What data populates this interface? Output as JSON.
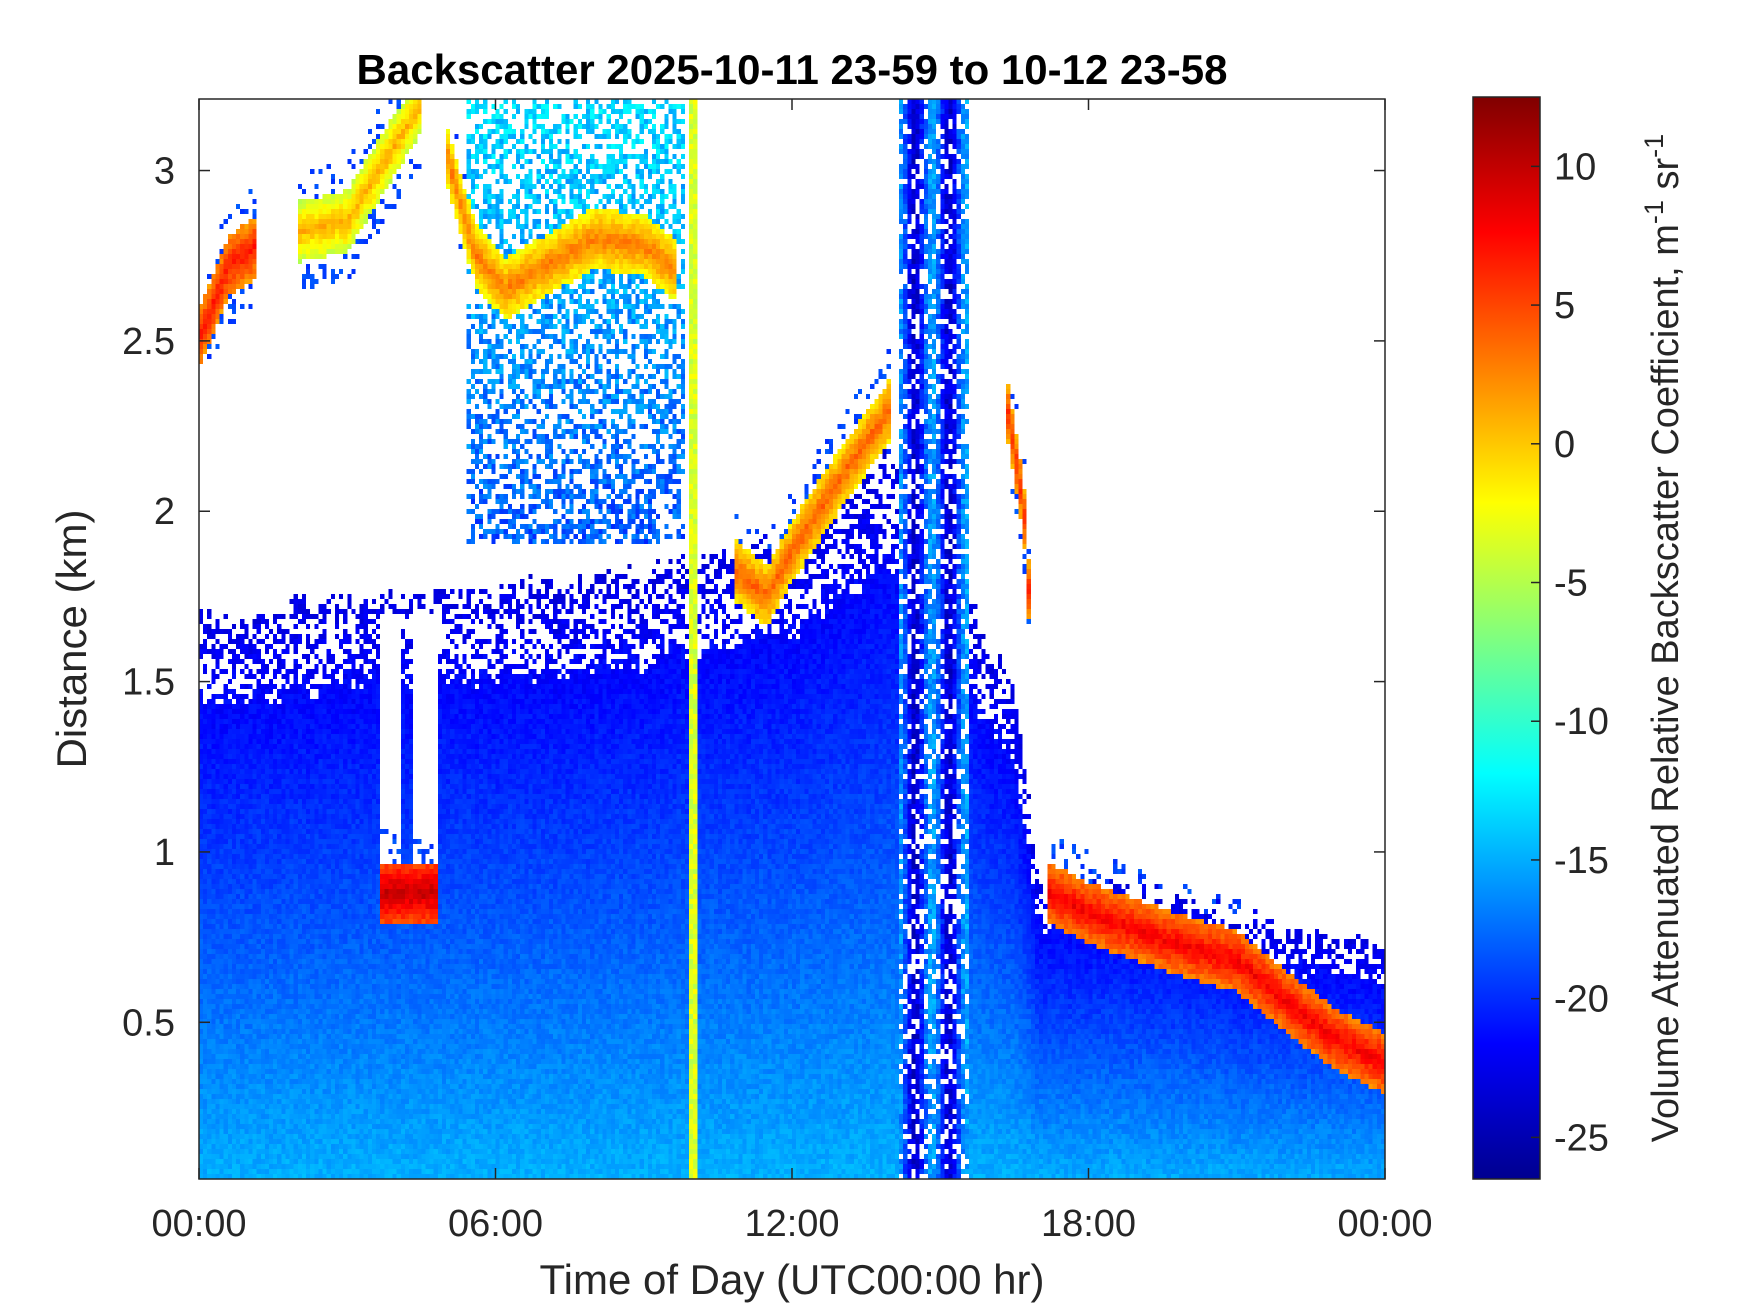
{
  "chart_data": {
    "type": "heatmap",
    "title": "Backscatter 2025-10-11 23-59 to 10-12 23-58",
    "xlabel": "Time of Day (UTC00:00 hr)",
    "ylabel": "Distance (km)",
    "xlim": [
      0,
      24
    ],
    "ylim": [
      0.04,
      3.21
    ],
    "x_ticks": [
      {
        "value": 0,
        "label": "00:00"
      },
      {
        "value": 6,
        "label": "06:00"
      },
      {
        "value": 12,
        "label": "12:00"
      },
      {
        "value": 18,
        "label": "18:00"
      },
      {
        "value": 24,
        "label": "00:00"
      }
    ],
    "y_ticks": [
      {
        "value": 0.5,
        "label": "0.5"
      },
      {
        "value": 1,
        "label": "1"
      },
      {
        "value": 1.5,
        "label": "1.5"
      },
      {
        "value": 2,
        "label": "2"
      },
      {
        "value": 2.5,
        "label": "2.5"
      },
      {
        "value": 3,
        "label": "3"
      }
    ],
    "colorbar": {
      "label": "Volume Attenuated Relative Backscatter Coefficient, m",
      "label_sup1": "-1",
      "label_mid": " sr",
      "label_sup2": "-1",
      "range": [
        -26.5,
        12.5
      ],
      "colormap": "jet",
      "ticks": [
        {
          "value": 10,
          "label": "10"
        },
        {
          "value": 5,
          "label": "5"
        },
        {
          "value": 0,
          "label": "0"
        },
        {
          "value": -5,
          "label": "-5"
        },
        {
          "value": -10,
          "label": "-10"
        },
        {
          "value": -15,
          "label": "-15"
        },
        {
          "value": -20,
          "label": "-20"
        },
        {
          "value": -25,
          "label": "-25"
        }
      ]
    },
    "features": {
      "surface_layer": {
        "top_km_by_hour": [
          [
            0,
            1.72
          ],
          [
            3.5,
            1.78
          ],
          [
            6,
            1.8
          ],
          [
            9,
            1.85
          ],
          [
            10,
            1.9
          ],
          [
            12,
            1.95
          ],
          [
            14,
            2.2
          ],
          [
            16.5,
            1.5
          ],
          [
            17,
            0.95
          ],
          [
            20,
            0.9
          ],
          [
            22,
            0.8
          ],
          [
            24,
            0.75
          ]
        ],
        "value_low": -14,
        "value_mid": -19,
        "value_top": -22
      },
      "cloud_layers": [
        {
          "points": [
            [
              0,
              2.5
            ],
            [
              0.6,
              2.72
            ],
            [
              1.2,
              2.78
            ]
          ],
          "value": 8
        },
        {
          "points": [
            [
              2,
              2.82
            ],
            [
              3,
              2.85
            ],
            [
              4.5,
              3.2
            ]
          ],
          "value": 2
        },
        {
          "points": [
            [
              5,
              3.05
            ],
            [
              5.6,
              2.75
            ],
            [
              6.2,
              2.65
            ],
            [
              7,
              2.72
            ],
            [
              8,
              2.8
            ],
            [
              9,
              2.78
            ],
            [
              9.7,
              2.7
            ]
          ],
          "value": 4
        },
        {
          "points": [
            [
              3.7,
              0.88
            ],
            [
              4.8,
              0.88
            ]
          ],
          "value": 11
        },
        {
          "points": [
            [
              10.8,
              1.83
            ],
            [
              11.5,
              1.75
            ],
            [
              12,
              1.88
            ],
            [
              13,
              2.1
            ],
            [
              14,
              2.3
            ]
          ],
          "value": 5
        },
        {
          "points": [
            [
              16.3,
              2.35
            ],
            [
              16.7,
              2.0
            ],
            [
              16.8,
              1.75
            ]
          ],
          "value": 7
        },
        {
          "points": [
            [
              17.2,
              0.88
            ],
            [
              18,
              0.82
            ],
            [
              19,
              0.77
            ],
            [
              20,
              0.72
            ],
            [
              21,
              0.68
            ],
            [
              22,
              0.56
            ],
            [
              23,
              0.45
            ],
            [
              24,
              0.38
            ]
          ],
          "value": 9
        }
      ],
      "precip_columns": [
        {
          "x": [
            9.95,
            10.12
          ],
          "top": 3.21,
          "value": -2
        },
        {
          "x": [
            14.2,
            15.6
          ],
          "top": 3.21,
          "value": -18
        }
      ],
      "clear_gaps": [
        {
          "x": [
            3.7,
            4.8
          ],
          "bottom": 0.95,
          "top": 1.7
        }
      ]
    }
  }
}
